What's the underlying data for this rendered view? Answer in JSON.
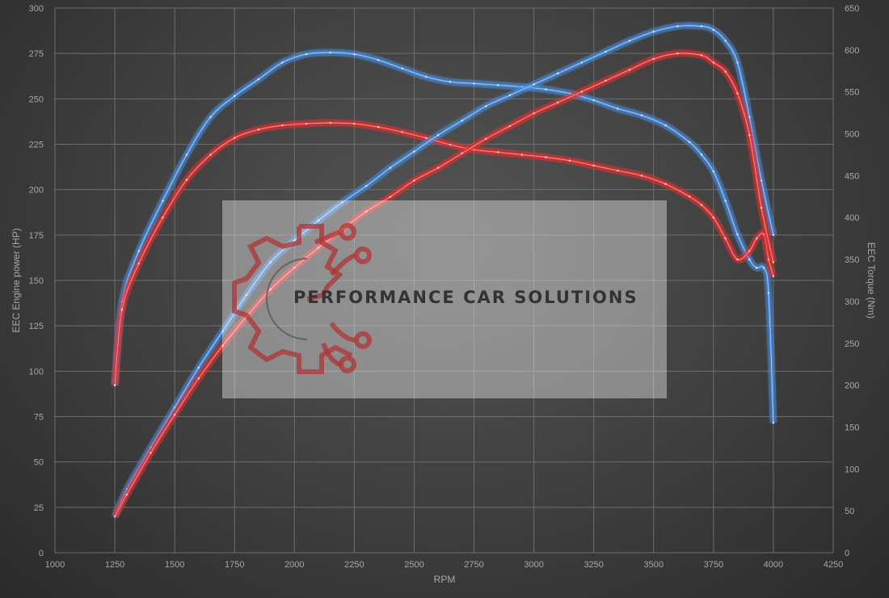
{
  "chart_data": {
    "type": "line",
    "xlabel": "RPM",
    "ylabel_left": "EEC Engine power (HP)",
    "ylabel_right": "EEC Torque (Nm)",
    "xlim": [
      1000,
      4250
    ],
    "ylim_left": [
      0,
      300
    ],
    "ylim_right": [
      0,
      650
    ],
    "x_ticks": [
      "1000",
      "1250",
      "1500",
      "1750",
      "2000",
      "2250",
      "2500",
      "2750",
      "3000",
      "3250",
      "3500",
      "3750",
      "4000",
      "4250"
    ],
    "y_ticks_left": [
      "0",
      "25",
      "50",
      "75",
      "100",
      "125",
      "150",
      "175",
      "200",
      "225",
      "250",
      "275",
      "300"
    ],
    "y_ticks_right": [
      "0",
      "50",
      "100",
      "150",
      "200",
      "250",
      "300",
      "350",
      "400",
      "450",
      "500",
      "550",
      "600",
      "650"
    ],
    "grid": true,
    "series": [
      {
        "axis": "right",
        "color": "#4a8fe0",
        "x": [
          1250,
          1280,
          1350,
          1450,
          1550,
          1650,
          1750,
          1850,
          1950,
          2050,
          2150,
          2250,
          2350,
          2450,
          2550,
          2650,
          2750,
          2850,
          2950,
          3050,
          3150,
          3250,
          3350,
          3450,
          3550,
          3650,
          3700,
          3750,
          3800,
          3850,
          3900,
          3930,
          3960,
          3980,
          4000
        ],
        "y": [
          200,
          300,
          360,
          420,
          475,
          520,
          545,
          565,
          585,
          595,
          597,
          595,
          588,
          578,
          568,
          562,
          560,
          558,
          556,
          553,
          548,
          540,
          530,
          522,
          510,
          490,
          475,
          455,
          420,
          380,
          350,
          340,
          340,
          310,
          155
        ]
      },
      {
        "axis": "right",
        "color": "#e83030",
        "x": [
          1250,
          1280,
          1350,
          1450,
          1550,
          1650,
          1750,
          1850,
          1950,
          2050,
          2150,
          2250,
          2350,
          2450,
          2550,
          2650,
          2750,
          2850,
          2950,
          3050,
          3150,
          3250,
          3350,
          3450,
          3550,
          3650,
          3700,
          3750,
          3800,
          3850,
          3900,
          3930,
          3960,
          3980,
          4000
        ],
        "y": [
          200,
          290,
          345,
          400,
          445,
          475,
          495,
          505,
          510,
          512,
          513,
          512,
          508,
          502,
          495,
          487,
          481,
          478,
          475,
          472,
          468,
          462,
          456,
          450,
          440,
          425,
          415,
          400,
          375,
          350,
          360,
          375,
          380,
          350,
          330
        ]
      },
      {
        "axis": "left",
        "color": "#4a8fe0",
        "x": [
          1250,
          1300,
          1400,
          1500,
          1600,
          1700,
          1800,
          1900,
          2000,
          2100,
          2200,
          2300,
          2400,
          2500,
          2600,
          2700,
          2800,
          2900,
          3000,
          3100,
          3200,
          3300,
          3400,
          3500,
          3600,
          3700,
          3750,
          3800,
          3850,
          3900,
          3950,
          4000
        ],
        "y": [
          20,
          35,
          58,
          80,
          102,
          122,
          142,
          160,
          172,
          183,
          193,
          202,
          212,
          221,
          230,
          238,
          246,
          252,
          258,
          264,
          270,
          276,
          282,
          287,
          290,
          290,
          288,
          282,
          270,
          240,
          205,
          175
        ]
      },
      {
        "axis": "left",
        "color": "#e83030",
        "x": [
          1250,
          1300,
          1400,
          1500,
          1600,
          1700,
          1800,
          1900,
          2000,
          2100,
          2200,
          2300,
          2400,
          2500,
          2600,
          2700,
          2800,
          2900,
          3000,
          3100,
          3200,
          3300,
          3400,
          3500,
          3600,
          3700,
          3750,
          3800,
          3850,
          3900,
          3950,
          4000
        ],
        "y": [
          20,
          32,
          55,
          76,
          96,
          114,
          130,
          145,
          157,
          168,
          178,
          188,
          196,
          205,
          212,
          220,
          228,
          235,
          242,
          248,
          254,
          260,
          266,
          272,
          275,
          274,
          270,
          265,
          253,
          230,
          190,
          160
        ]
      }
    ]
  },
  "watermark": {
    "text": "PERFORMANCE CAR SOLUTIONS",
    "logo": "gear-circuit-logo"
  }
}
